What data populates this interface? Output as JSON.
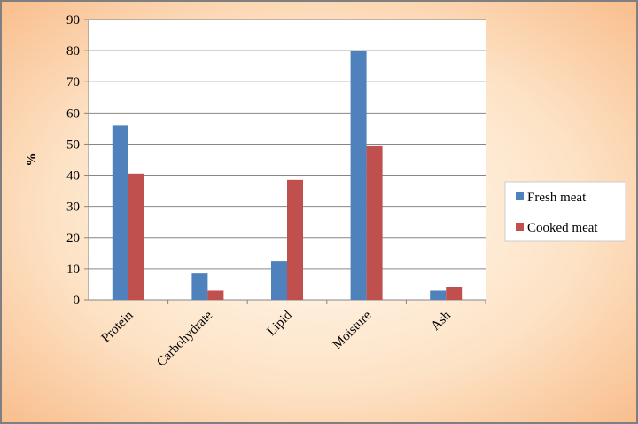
{
  "chart_data": {
    "type": "bar",
    "y_label": "%",
    "categories": [
      "Protein",
      "Carbohydrate",
      "Lipid",
      "Moisture",
      "Ash"
    ],
    "series": [
      {
        "name": "Fresh meat",
        "color": "#4f81bd",
        "values": [
          56,
          8.5,
          12.5,
          80,
          3
        ]
      },
      {
        "name": "Cooked meat",
        "color": "#c0504d",
        "values": [
          40.5,
          3,
          38.5,
          49.3,
          4.2
        ]
      }
    ],
    "ylim": [
      0,
      90
    ],
    "yticks": [
      0,
      10,
      20,
      30,
      40,
      50,
      60,
      70,
      80,
      90
    ],
    "grid": true,
    "legend": "right"
  }
}
